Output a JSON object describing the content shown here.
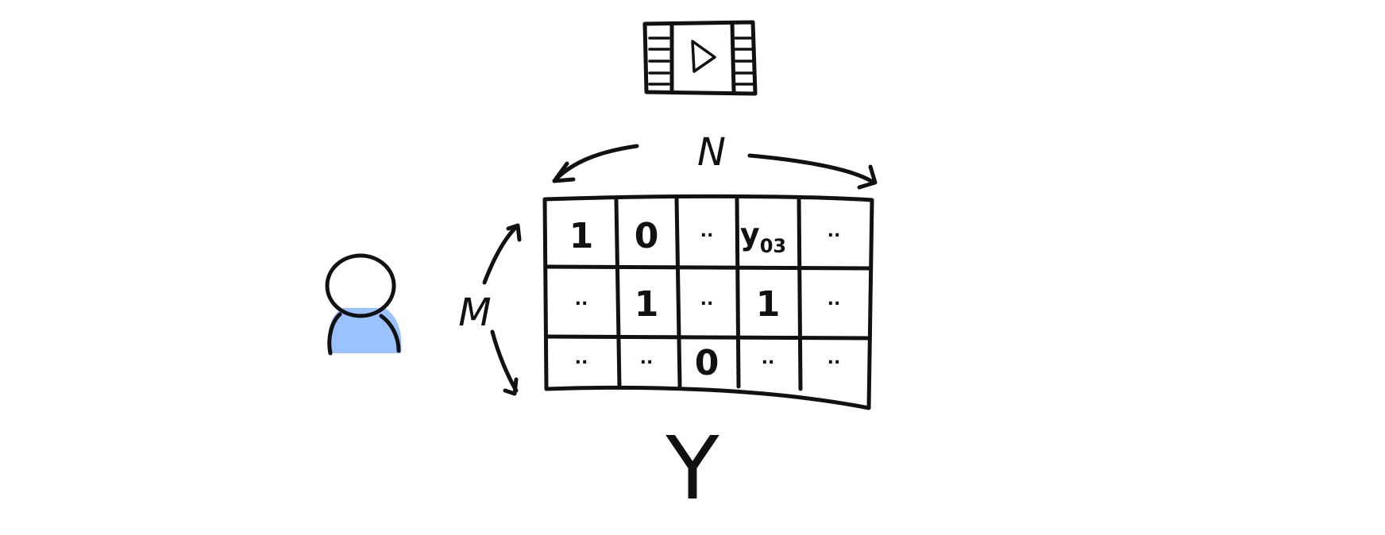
{
  "colors": {
    "ink": "#111111",
    "person": "#99c2ff",
    "film": "#d4d4d4",
    "background": "#ffffff"
  },
  "icons": {
    "top": "film-play-icon",
    "left": "person-icon"
  },
  "labels": {
    "columns": "N",
    "rows": "M",
    "matrix": "Y"
  },
  "matrix": {
    "rows": [
      [
        "1",
        "0",
        "..",
        "y_03",
        ".."
      ],
      [
        "..",
        "1",
        "..",
        "1",
        ".."
      ],
      [
        "..",
        "..",
        "0",
        "..",
        ".."
      ]
    ],
    "special_cell": {
      "main": "y",
      "subscript": "03"
    }
  }
}
